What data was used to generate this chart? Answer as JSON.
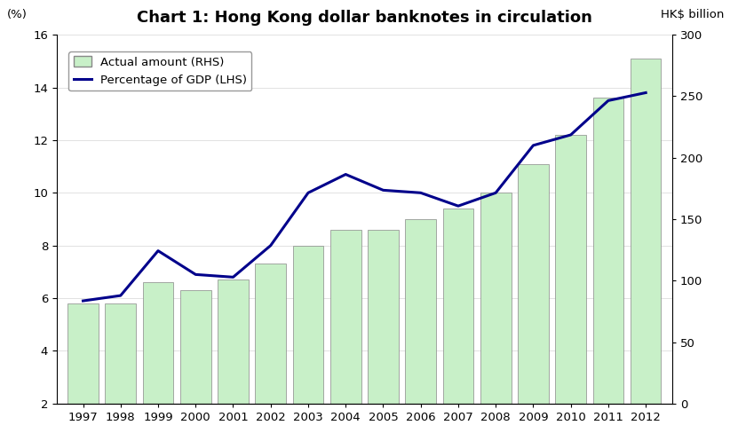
{
  "title": "Chart 1: Hong Kong dollar banknotes in circulation",
  "years": [
    1997,
    1998,
    1999,
    2000,
    2001,
    2002,
    2003,
    2004,
    2005,
    2006,
    2007,
    2008,
    2009,
    2010,
    2011,
    2012
  ],
  "bar_values_lhs": [
    5.8,
    5.8,
    6.6,
    6.3,
    6.7,
    7.3,
    8.0,
    8.6,
    8.6,
    9.0,
    9.4,
    10.0,
    11.1,
    12.2,
    13.6,
    15.1
  ],
  "line_values": [
    5.9,
    6.1,
    7.8,
    6.9,
    6.8,
    8.0,
    10.0,
    10.7,
    10.1,
    10.0,
    9.5,
    10.0,
    11.8,
    12.2,
    13.5,
    13.8
  ],
  "bar_color": "#c8f0c8",
  "bar_edge_color": "#888888",
  "line_color": "#00008B",
  "left_ylabel": "(%)",
  "right_ylabel": "HK$ billion",
  "left_ylim": [
    2,
    16
  ],
  "right_ylim": [
    0,
    300
  ],
  "left_yticks": [
    2,
    4,
    6,
    8,
    10,
    12,
    14,
    16
  ],
  "right_yticks": [
    0,
    50,
    100,
    150,
    200,
    250,
    300
  ],
  "legend_bar_label": "Actual amount (RHS)",
  "legend_line_label": "Percentage of GDP (LHS)",
  "background_color": "#ffffff",
  "title_fontsize": 13,
  "label_fontsize": 9.5,
  "bar_bottom": 2,
  "xlim_left": 1996.3,
  "xlim_right": 2012.7,
  "bar_width": 0.82
}
